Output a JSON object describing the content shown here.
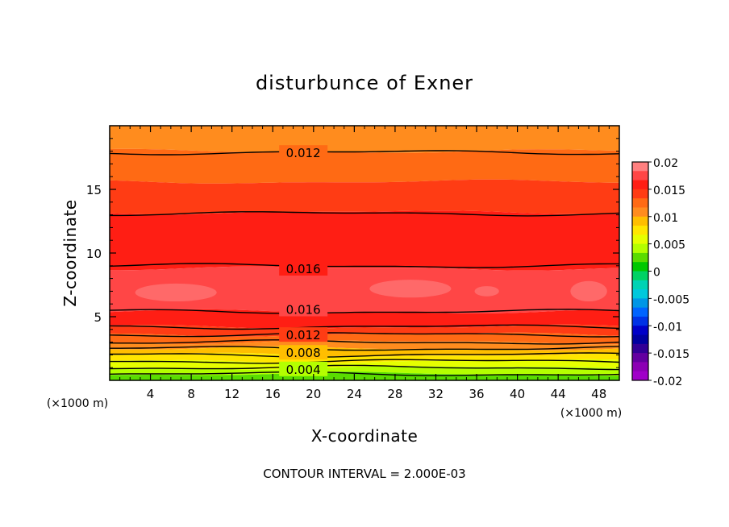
{
  "chart_data": {
    "type": "contour",
    "title": "disturbunce of Exner",
    "xlabel": "X-coordinate",
    "ylabel": "Z-coordinate",
    "x_unit_left": "(×1000 m)",
    "x_unit_right": "(×1000 m)",
    "xlim": [
      0,
      50
    ],
    "ylim": [
      0,
      20
    ],
    "x_ticks": [
      4,
      8,
      12,
      16,
      20,
      24,
      28,
      32,
      36,
      40,
      44,
      48
    ],
    "y_ticks": [
      5,
      10,
      15
    ],
    "contour_interval_text": "CONTOUR INTERVAL = 2.000E-03",
    "layers_from_top": [
      {
        "z_top": 20.0,
        "z_bottom": 18.0,
        "color": "#ff8c1e"
      },
      {
        "z_top": 18.0,
        "z_bottom": 15.6,
        "color": "#ff6a14"
      },
      {
        "z_top": 15.6,
        "z_bottom": 13.2,
        "color": "#ff3c14"
      },
      {
        "z_top": 13.2,
        "z_bottom": 8.8,
        "color": "#ff1e14"
      },
      {
        "z_top": 8.8,
        "z_bottom": 5.4,
        "color": "#ff4646"
      },
      {
        "z_top": 5.4,
        "z_bottom": 4.2,
        "color": "#ff1e14"
      },
      {
        "z_top": 4.2,
        "z_bottom": 3.6,
        "color": "#ff3c14"
      },
      {
        "z_top": 3.6,
        "z_bottom": 3.0,
        "color": "#ff6a14"
      },
      {
        "z_top": 3.0,
        "z_bottom": 2.5,
        "color": "#ff8c1e"
      },
      {
        "z_top": 2.5,
        "z_bottom": 2.0,
        "color": "#ffbe00"
      },
      {
        "z_top": 2.0,
        "z_bottom": 1.5,
        "color": "#ffe600"
      },
      {
        "z_top": 1.5,
        "z_bottom": 1.0,
        "color": "#e6ff00"
      },
      {
        "z_top": 1.0,
        "z_bottom": 0.5,
        "color": "#b4ff00"
      },
      {
        "z_top": 0.5,
        "z_bottom": 0.0,
        "color": "#5adc00"
      }
    ],
    "contour_lines_z": [
      17.9,
      13.1,
      9.0,
      5.4,
      4.2,
      3.6,
      3.0,
      2.5,
      2.0,
      1.5,
      1.0,
      0.5
    ],
    "contour_labels": [
      {
        "text": "0.012",
        "x": 19,
        "z": 17.9
      },
      {
        "text": "0.016",
        "x": 19,
        "z": 8.8
      },
      {
        "text": "0.016",
        "x": 19,
        "z": 5.6
      },
      {
        "text": "0.012",
        "x": 19,
        "z": 3.6
      },
      {
        "text": "0.008",
        "x": 19,
        "z": 2.2
      },
      {
        "text": "0.004",
        "x": 19,
        "z": 0.9
      }
    ],
    "highlight_patches": [
      {
        "x": 6.5,
        "z": 6.9,
        "rx": 4.0,
        "rz": 0.7
      },
      {
        "x": 29.5,
        "z": 7.2,
        "rx": 4.0,
        "rz": 0.7
      },
      {
        "x": 47.0,
        "z": 7.0,
        "rx": 1.8,
        "rz": 0.8
      },
      {
        "x": 37.0,
        "z": 7.0,
        "rx": 1.2,
        "rz": 0.4
      }
    ],
    "highlight_color": "#ff7070",
    "colorbar": {
      "ticks": [
        "0.02",
        "0.015",
        "0.01",
        "0.005",
        "0",
        "-0.005",
        "-0.01",
        "-0.015",
        "-0.02"
      ],
      "colors_top_to_bottom": [
        "#ff8080",
        "#ff4646",
        "#ff1e14",
        "#ff3c14",
        "#ff6a14",
        "#ff8c1e",
        "#ffbe00",
        "#ffe600",
        "#e6ff00",
        "#b4ff00",
        "#5adc00",
        "#00c800",
        "#00d264",
        "#00d2b4",
        "#00c8dc",
        "#0096e6",
        "#0064ff",
        "#0032e6",
        "#0000c8",
        "#0000a0",
        "#320096",
        "#6400a0",
        "#8c00b4",
        "#a000c8"
      ]
    }
  }
}
